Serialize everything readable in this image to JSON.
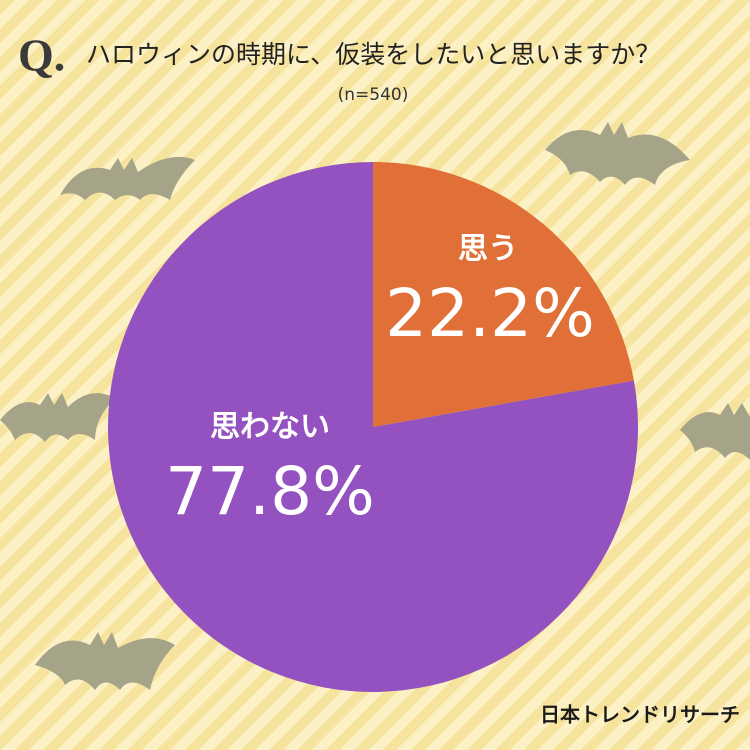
{
  "chart_data": {
    "type": "pie",
    "title_prefix": "Q.",
    "title": "ハロウィンの時期に、仮装をしたいと思いますか？",
    "subtitle": "(n=540)",
    "categories": [
      "思う",
      "思わない"
    ],
    "values": [
      22.2,
      77.8
    ],
    "value_labels": [
      "22.2%",
      "77.8%"
    ],
    "colors": [
      "#e07038",
      "#9452c0"
    ],
    "source": "日本トレンドリサーチ"
  }
}
